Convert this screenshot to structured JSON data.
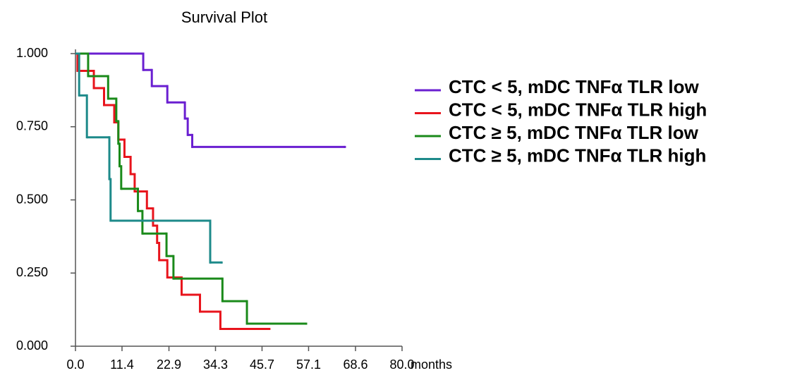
{
  "chart_data": {
    "type": "line",
    "title": "Survival Plot",
    "x_label": "months",
    "xlim": [
      0,
      80
    ],
    "xticks": [
      {
        "value": 0,
        "label": "0.0"
      },
      {
        "value": 11.4,
        "label": "11.4"
      },
      {
        "value": 22.9,
        "label": "22.9"
      },
      {
        "value": 34.3,
        "label": "34.3"
      },
      {
        "value": 45.7,
        "label": "45.7"
      },
      {
        "value": 57.1,
        "label": "57.1"
      },
      {
        "value": 68.6,
        "label": "68.6"
      },
      {
        "value": 80,
        "label": "80.0"
      }
    ],
    "ylim": [
      0,
      1
    ],
    "yticks": [
      {
        "value": 0,
        "label": "0.000"
      },
      {
        "value": 0.25,
        "label": "0.250"
      },
      {
        "value": 0.5,
        "label": "0.500"
      },
      {
        "value": 0.75,
        "label": "0.750"
      },
      {
        "value": 1,
        "label": "1.000"
      }
    ],
    "series": [
      {
        "name": "CTC < 5, mDC TNFα TLR low",
        "color": "#6a1fd1",
        "x": [
          0,
          16.6,
          18.7,
          22.5,
          26.8,
          27.5,
          28.6,
          66.0
        ],
        "values": [
          1,
          0.944,
          0.889,
          0.833,
          0.778,
          0.722,
          0.681,
          0.681
        ]
      },
      {
        "name": "CTC < 5, mDC TNFα TLR high",
        "color": "#e8141c",
        "x": [
          0,
          0.5,
          4.5,
          7.0,
          9.5,
          10.5,
          12.0,
          13.5,
          14.5,
          17.5,
          19.0,
          20.0,
          20.5,
          22.5,
          26.0,
          30.5,
          35.5,
          37.5,
          47.5
        ],
        "values": [
          1,
          0.941,
          0.882,
          0.824,
          0.765,
          0.706,
          0.647,
          0.588,
          0.529,
          0.471,
          0.412,
          0.353,
          0.294,
          0.235,
          0.176,
          0.118,
          0.059,
          0.059,
          0.059
        ]
      },
      {
        "name": "CTC ≥ 5, mDC TNFα TLR low",
        "color": "#1a8a1a",
        "x": [
          0,
          3.1,
          8.0,
          10.0,
          10.5,
          10.8,
          11.2,
          15.3,
          16.4,
          22.3,
          24.0,
          36.0,
          42.0,
          56.5
        ],
        "values": [
          1,
          0.923,
          0.846,
          0.769,
          0.692,
          0.615,
          0.538,
          0.462,
          0.385,
          0.308,
          0.231,
          0.154,
          0.077,
          0.077
        ]
      },
      {
        "name": "CTC ≥ 5, mDC TNFα TLR high",
        "color": "#1d8a8a",
        "x": [
          0,
          0.9,
          2.8,
          8.3,
          8.6,
          33.0,
          35.8
        ],
        "values": [
          1,
          0.857,
          0.714,
          0.571,
          0.429,
          0.286,
          0.286
        ]
      }
    ]
  }
}
